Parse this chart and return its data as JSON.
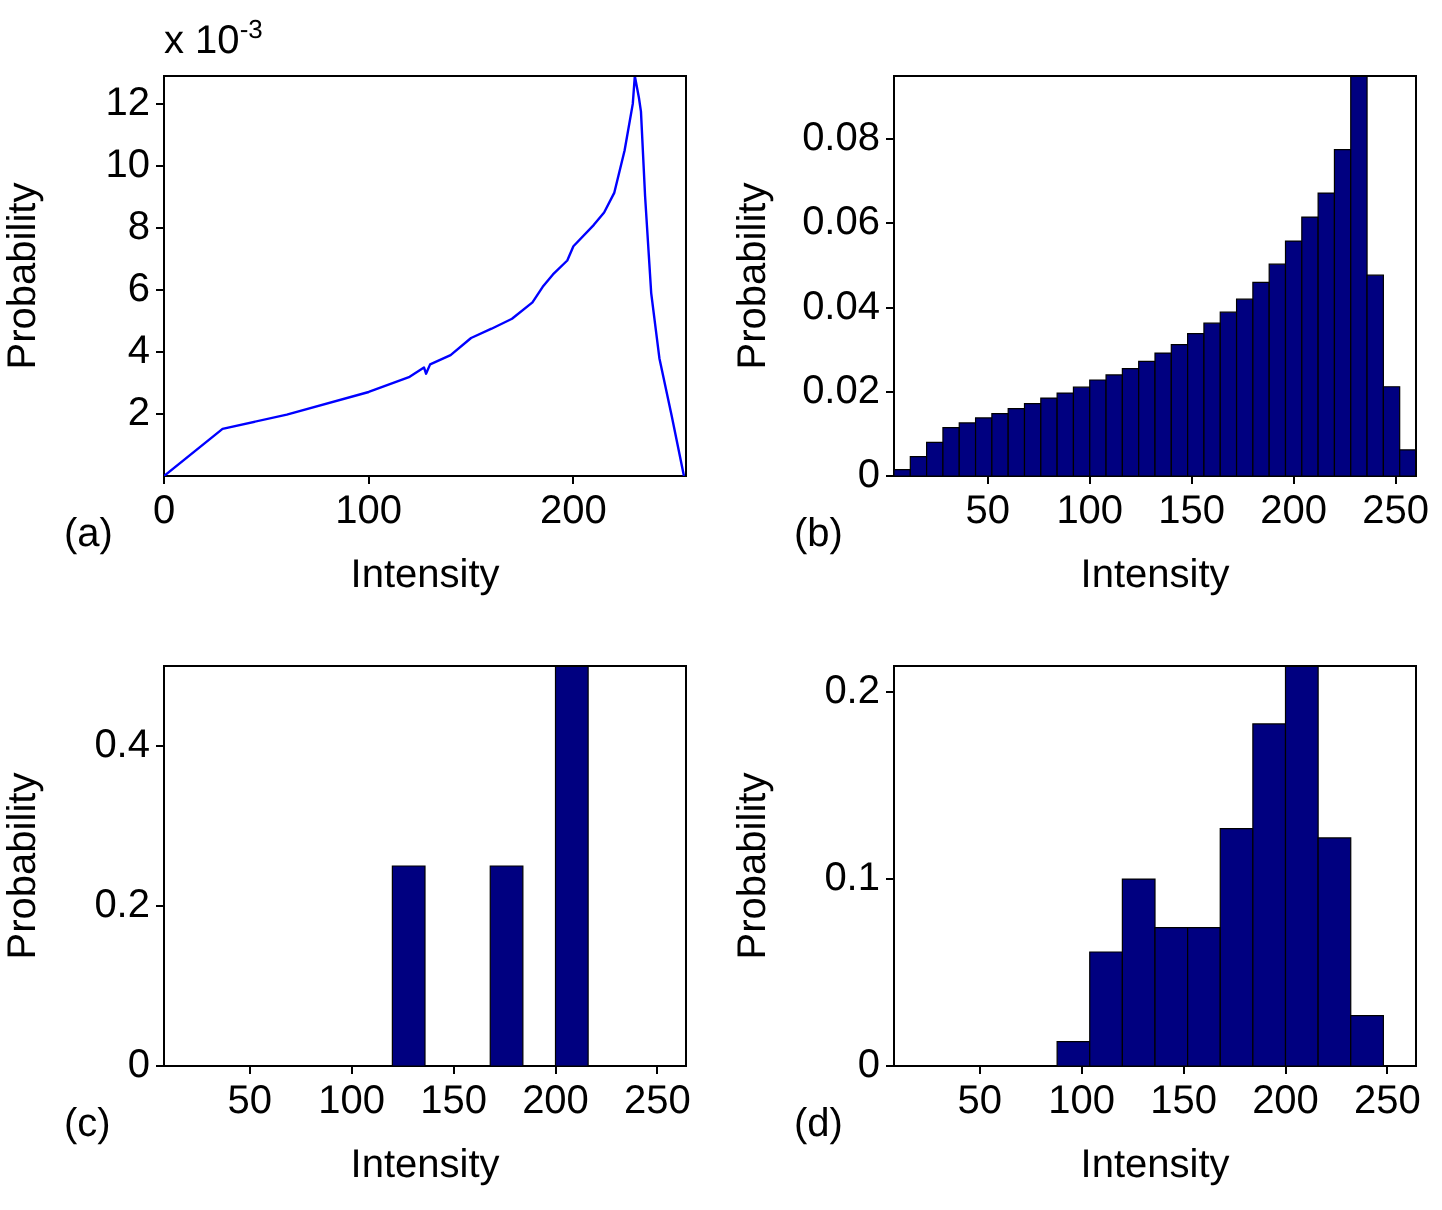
{
  "chart_data": [
    {
      "type": "line",
      "xlabel": "Intensity",
      "ylabel": "Probability",
      "annotations": [
        "(a)",
        "x 10$^{-3}$"
      ],
      "legend": false,
      "x": [
        0,
        28.6,
        60,
        100,
        120,
        127,
        128,
        130,
        140,
        150,
        160,
        170,
        180,
        185,
        190,
        197,
        200,
        210,
        215,
        220,
        225,
        229,
        230,
        232,
        233,
        235,
        238,
        242,
        248,
        254
      ],
      "values": [
        0,
        1.52,
        1.98,
        2.71,
        3.2,
        3.5,
        3.3,
        3.6,
        3.9,
        4.45,
        4.75,
        5.07,
        5.6,
        6.1,
        6.5,
        6.95,
        7.41,
        8.1,
        8.5,
        9.14,
        10.5,
        12.0,
        12.9,
        12.2,
        11.75,
        9.04,
        5.9,
        3.8,
        1.94,
        0
      ],
      "color": "#0000ff",
      "xlim": [
        0,
        255
      ],
      "ylim": [
        0,
        12.9
      ],
      "xticks": [
        0,
        100,
        200
      ],
      "yticks": [
        2,
        4,
        6,
        8,
        10,
        12
      ]
    },
    {
      "type": "histogram",
      "xlabel": "Intensity",
      "ylabel": "Probability",
      "annotations": [
        "(b)"
      ],
      "legend": false,
      "bins": [
        4,
        12,
        20,
        28,
        36,
        44,
        52,
        60,
        68,
        76,
        84,
        92,
        100,
        108,
        116,
        124,
        132,
        140,
        148,
        156,
        164,
        172,
        180,
        188,
        196,
        204,
        212,
        220,
        228,
        236,
        244,
        252,
        260
      ],
      "values": [
        0.0015,
        0.0046,
        0.008,
        0.0115,
        0.0126,
        0.0138,
        0.0148,
        0.016,
        0.0172,
        0.0185,
        0.0197,
        0.0211,
        0.0228,
        0.024,
        0.0255,
        0.0272,
        0.0292,
        0.0312,
        0.0338,
        0.0363,
        0.0389,
        0.042,
        0.046,
        0.0503,
        0.0558,
        0.0615,
        0.0672,
        0.0775,
        0.095,
        0.0477,
        0.0212,
        0.0062
      ],
      "color": "#000080",
      "xlim": [
        4,
        260
      ],
      "ylim": [
        0,
        0.095
      ],
      "xticks": [
        50,
        100,
        150,
        200,
        250
      ],
      "yticks": [
        0,
        0.02,
        0.04,
        0.06,
        0.08
      ]
    },
    {
      "type": "histogram",
      "xlabel": "Intensity",
      "ylabel": "Probability",
      "annotations": [
        "(c)"
      ],
      "legend": false,
      "bins": [
        8,
        24,
        40,
        56,
        72,
        88,
        104,
        120,
        136,
        152,
        168,
        184,
        200,
        216,
        232,
        248,
        264
      ],
      "values": [
        0,
        0,
        0,
        0,
        0,
        0,
        0,
        0.25,
        0,
        0,
        0.25,
        0,
        0.5,
        0,
        0,
        0
      ],
      "color": "#000080",
      "xlim": [
        8,
        264
      ],
      "ylim": [
        0,
        0.5
      ],
      "xticks": [
        50,
        100,
        150,
        200,
        250
      ],
      "yticks": [
        0,
        0.2,
        0.4
      ]
    },
    {
      "type": "histogram",
      "xlabel": "Intensity",
      "ylabel": "Probability",
      "annotations": [
        "(d)"
      ],
      "legend": false,
      "bins": [
        8,
        24,
        40,
        56,
        72,
        88,
        104,
        120,
        136,
        152,
        168,
        184,
        200,
        216,
        232,
        248,
        264
      ],
      "values": [
        0,
        0,
        0,
        0,
        0,
        0.013,
        0.061,
        0.1,
        0.074,
        0.074,
        0.127,
        0.183,
        0.214,
        0.122,
        0.027,
        0
      ],
      "color": "#000080",
      "xlim": [
        8,
        264
      ],
      "ylim": [
        0,
        0.214
      ],
      "xticks": [
        50,
        100,
        150,
        200,
        250
      ],
      "yticks": [
        0,
        0.1,
        0.2
      ]
    }
  ]
}
